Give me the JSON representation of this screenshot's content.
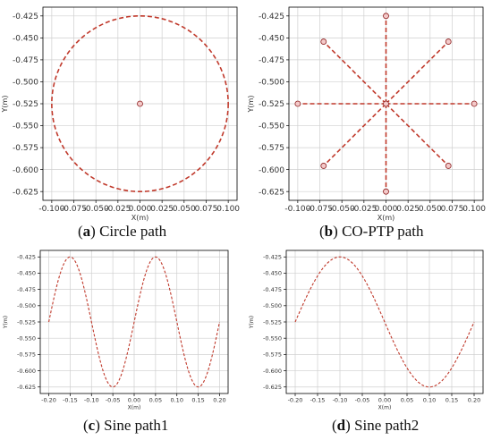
{
  "figure": {
    "colors": {
      "path": "#c0392b",
      "marker_fill": "#f3c9c9",
      "marker_stroke": "#8e1e1e",
      "grid": "#cfcfcf",
      "axis": "#000000"
    },
    "captions": [
      {
        "letter": "a",
        "text": "Circle path"
      },
      {
        "letter": "b",
        "text": "CO-PTP path"
      },
      {
        "letter": "c",
        "text": "Sine path1"
      },
      {
        "letter": "d",
        "text": "Sine path2"
      }
    ]
  },
  "chart_data": [
    {
      "id": "a",
      "type": "line",
      "title": "",
      "xlabel": "X(m)",
      "ylabel": "Y(m)",
      "xlim": [
        -0.11,
        0.11
      ],
      "ylim": [
        -0.635,
        -0.415
      ],
      "xticks": [
        "-0.100",
        "-0.075",
        "-0.050",
        "-0.025",
        "0.000",
        "0.025",
        "0.050",
        "0.075",
        "0.100"
      ],
      "yticks": [
        "-0.425",
        "-0.450",
        "-0.475",
        "-0.500",
        "-0.525",
        "-0.550",
        "-0.575",
        "-0.600",
        "-0.625"
      ],
      "grid": true,
      "series": [
        {
          "kind": "circle",
          "center": [
            0.0,
            -0.525
          ],
          "radius": 0.1,
          "style": "dashed"
        },
        {
          "kind": "marker",
          "points": [
            [
              0.0,
              -0.525
            ]
          ]
        }
      ]
    },
    {
      "id": "b",
      "type": "line",
      "title": "",
      "xlabel": "X(m)",
      "ylabel": "Y(m)",
      "xlim": [
        -0.11,
        0.11
      ],
      "ylim": [
        -0.635,
        -0.415
      ],
      "xticks": [
        "-0.100",
        "-0.075",
        "-0.050",
        "-0.025",
        "0.000",
        "0.025",
        "0.050",
        "0.075",
        "0.100"
      ],
      "yticks": [
        "-0.425",
        "-0.450",
        "-0.475",
        "-0.500",
        "-0.525",
        "-0.550",
        "-0.575",
        "-0.600",
        "-0.625"
      ],
      "grid": true,
      "series": [
        {
          "kind": "rays",
          "center": [
            0.0,
            -0.525
          ],
          "endpoints": [
            [
              0.0,
              -0.425
            ],
            [
              0.0707,
              -0.4543
            ],
            [
              0.1,
              -0.525
            ],
            [
              0.0707,
              -0.5957
            ],
            [
              0.0,
              -0.625
            ],
            [
              -0.0707,
              -0.5957
            ],
            [
              -0.1,
              -0.525
            ],
            [
              -0.0707,
              -0.4543
            ]
          ],
          "style": "dashed"
        },
        {
          "kind": "marker",
          "points": [
            [
              0.0,
              -0.525
            ],
            [
              0.0,
              -0.425
            ],
            [
              0.0707,
              -0.4543
            ],
            [
              0.1,
              -0.525
            ],
            [
              0.0707,
              -0.5957
            ],
            [
              0.0,
              -0.625
            ],
            [
              -0.0707,
              -0.5957
            ],
            [
              -0.1,
              -0.525
            ],
            [
              -0.0707,
              -0.4543
            ]
          ]
        }
      ]
    },
    {
      "id": "c",
      "type": "line",
      "title": "",
      "xlabel": "X(m)",
      "ylabel": "Y(m)",
      "xlim": [
        -0.22,
        0.22
      ],
      "ylim": [
        -0.635,
        -0.415
      ],
      "xticks": [
        "-0.20",
        "-0.15",
        "-0.10",
        "-0.05",
        "0.00",
        "0.05",
        "0.10",
        "0.15",
        "0.20"
      ],
      "yticks": [
        "-0.425",
        "-0.450",
        "-0.475",
        "-0.500",
        "-0.525",
        "-0.550",
        "-0.575",
        "-0.600",
        "-0.625"
      ],
      "grid": true,
      "series": [
        {
          "kind": "sine",
          "x_range": [
            -0.2,
            0.2
          ],
          "offset": -0.525,
          "amplitude": 0.1,
          "period": 0.2,
          "x0": -0.2,
          "style": "dashed",
          "key_points": [
            [
              -0.2,
              -0.525
            ],
            [
              -0.15,
              -0.425
            ],
            [
              -0.1,
              -0.525
            ],
            [
              -0.05,
              -0.625
            ],
            [
              0.0,
              -0.525
            ],
            [
              0.05,
              -0.425
            ],
            [
              0.1,
              -0.525
            ],
            [
              0.15,
              -0.625
            ],
            [
              0.2,
              -0.525
            ]
          ]
        }
      ]
    },
    {
      "id": "d",
      "type": "line",
      "title": "",
      "xlabel": "X(m)",
      "ylabel": "Y(m)",
      "xlim": [
        -0.22,
        0.22
      ],
      "ylim": [
        -0.635,
        -0.415
      ],
      "xticks": [
        "-0.20",
        "-0.15",
        "-0.10",
        "-0.05",
        "0.00",
        "0.05",
        "0.10",
        "0.15",
        "0.20"
      ],
      "yticks": [
        "-0.425",
        "-0.450",
        "-0.475",
        "-0.500",
        "-0.525",
        "-0.550",
        "-0.575",
        "-0.600",
        "-0.625"
      ],
      "grid": true,
      "series": [
        {
          "kind": "sine",
          "x_range": [
            -0.2,
            0.2
          ],
          "offset": -0.525,
          "amplitude": 0.1,
          "period": 0.4,
          "x0": -0.2,
          "style": "dashed",
          "key_points": [
            [
              -0.2,
              -0.525
            ],
            [
              -0.1,
              -0.425
            ],
            [
              0.0,
              -0.525
            ],
            [
              0.1,
              -0.625
            ],
            [
              0.2,
              -0.525
            ]
          ]
        }
      ]
    }
  ]
}
